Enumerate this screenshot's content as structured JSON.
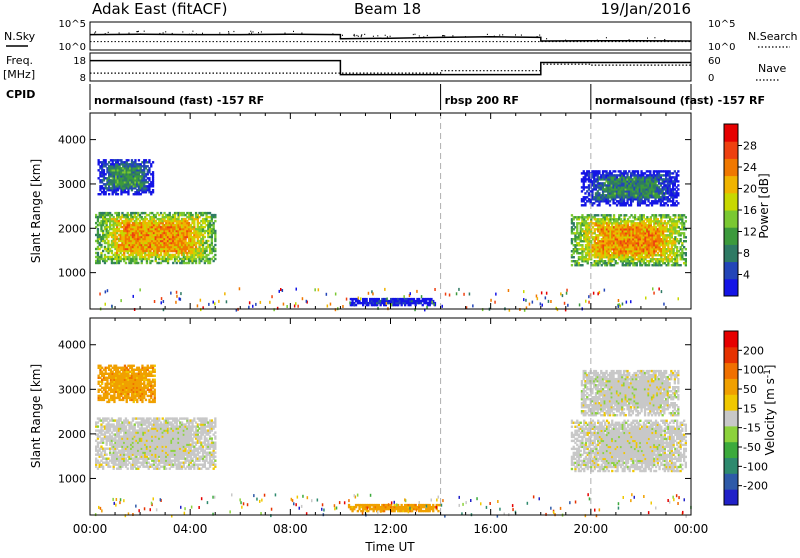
{
  "header": {
    "station": "Adak East (fitACF)",
    "beam": "Beam 18",
    "date": "19/Jan/2016"
  },
  "labels": {
    "nsky": "N.Sky",
    "nsearch": "N.Search",
    "freq_line1": "Freq.",
    "freq_line2": "[MHz]",
    "nave": "Nave",
    "cpid": "CPID",
    "nsky_tick_top": "10^5",
    "nsky_tick_bottom": "10^0",
    "nsearch_tick_top": "10^5",
    "nsearch_tick_bottom": "10^0",
    "freq_tick_top": "18",
    "freq_tick_bottom": "8",
    "nave_tick_top": "60",
    "nave_tick_bottom": "0"
  },
  "cpid_segments": [
    {
      "start": 0,
      "end": 14,
      "label": "normalsound (fast) -157 RF"
    },
    {
      "start": 14,
      "end": 20,
      "label": "rbsp 200 RF"
    },
    {
      "start": 20,
      "end": 24,
      "label": "normalsound (fast) -157 RF"
    }
  ],
  "chart_data": [
    {
      "type": "line",
      "title": "N.Sky / N.Search",
      "xlim": [
        0,
        24
      ],
      "series": [
        {
          "name": "N.Sky",
          "style": "solid",
          "x": [
            0,
            2,
            4,
            6,
            8,
            10,
            10,
            12,
            14,
            16,
            18,
            18,
            20,
            22,
            24
          ],
          "y": [
            0.55,
            0.56,
            0.55,
            0.55,
            0.56,
            0.55,
            0.4,
            0.42,
            0.45,
            0.47,
            0.45,
            0.32,
            0.33,
            0.33,
            0.32
          ]
        },
        {
          "name": "N.Search",
          "style": "dotted",
          "x": [
            0,
            24
          ],
          "y": [
            0.3,
            0.3
          ]
        }
      ]
    },
    {
      "type": "line",
      "title": "Freq. / Nave",
      "xlim": [
        0,
        24
      ],
      "series": [
        {
          "name": "Freq. [MHz]",
          "style": "solid",
          "ylim": [
            8,
            18
          ],
          "x": [
            0,
            10,
            10,
            18,
            18,
            24
          ],
          "y": [
            15.3,
            15.3,
            10.3,
            10.3,
            14.6,
            14.6
          ]
        },
        {
          "name": "Nave",
          "style": "dotted",
          "ylim": [
            0,
            60
          ],
          "x": [
            0,
            14,
            14,
            18,
            18,
            20,
            20,
            24
          ],
          "y": [
            17,
            17,
            22,
            22,
            36,
            36,
            34,
            34
          ]
        }
      ]
    },
    {
      "type": "heatmap",
      "xlabel": "Time UT",
      "ylabel": "Slant Range [km]",
      "xlim": [
        0,
        24
      ],
      "ylim": [
        180,
        4600
      ],
      "xticks": [
        "00:00",
        "04:00",
        "08:00",
        "12:00",
        "16:00",
        "20:00",
        "00:00"
      ],
      "yticks": [
        1000,
        2000,
        3000,
        4000
      ],
      "colorbar": {
        "label": "Power [dB]",
        "ticks": [
          "4",
          "8",
          "12",
          "16",
          "20",
          "24",
          "28"
        ],
        "colors": [
          "#1414e6",
          "#2345b8",
          "#2e7a64",
          "#3c9a3c",
          "#7ac832",
          "#c8d800",
          "#f0b400",
          "#f07800",
          "#ee4010",
          "#e60000"
        ]
      },
      "regions": [
        {
          "t0": 0.2,
          "t1": 5.0,
          "r0": 1200,
          "r1": 2350,
          "v": 0.72
        },
        {
          "t0": 0.3,
          "t1": 2.5,
          "r0": 2750,
          "r1": 3550,
          "v": 0.3
        },
        {
          "t0": 10.3,
          "t1": 13.8,
          "r0": 250,
          "r1": 420,
          "v": 0.05
        },
        {
          "t0": 19.2,
          "t1": 23.8,
          "r0": 1150,
          "r1": 2300,
          "v": 0.72
        },
        {
          "t0": 19.6,
          "t1": 23.5,
          "r0": 2500,
          "r1": 3300,
          "v": 0.25
        }
      ]
    },
    {
      "type": "heatmap",
      "xlabel": "Time UT",
      "ylabel": "Slant Range [km]",
      "xlim": [
        0,
        24
      ],
      "ylim": [
        180,
        4600
      ],
      "xticks": [
        "00:00",
        "04:00",
        "08:00",
        "12:00",
        "16:00",
        "20:00",
        "00:00"
      ],
      "yticks": [
        1000,
        2000,
        3000,
        4000
      ],
      "colorbar": {
        "label": "Velocity [m s^-1]",
        "ticks": [
          "200",
          "100",
          "50",
          "15",
          "-15",
          "-50",
          "-100",
          "-200"
        ],
        "colors": [
          "#2020c8",
          "#2e5aa8",
          "#2e8a6e",
          "#3caa3c",
          "#8cd23c",
          "#c8c8c8",
          "#f0c800",
          "#f0a000",
          "#f07000",
          "#e63200",
          "#e60000"
        ]
      },
      "regions": [
        {
          "t0": 0.2,
          "t1": 5.0,
          "r0": 1200,
          "r1": 2350,
          "v": 5
        },
        {
          "t0": 0.3,
          "t1": 2.6,
          "r0": 2700,
          "r1": 3550,
          "v": 7
        },
        {
          "t0": 10.3,
          "t1": 14.0,
          "r0": 250,
          "r1": 420,
          "v": 7
        },
        {
          "t0": 19.2,
          "t1": 23.8,
          "r0": 1150,
          "r1": 2300,
          "v": 5
        },
        {
          "t0": 19.6,
          "t1": 23.5,
          "r0": 2400,
          "r1": 3400,
          "v": 5
        }
      ]
    }
  ]
}
